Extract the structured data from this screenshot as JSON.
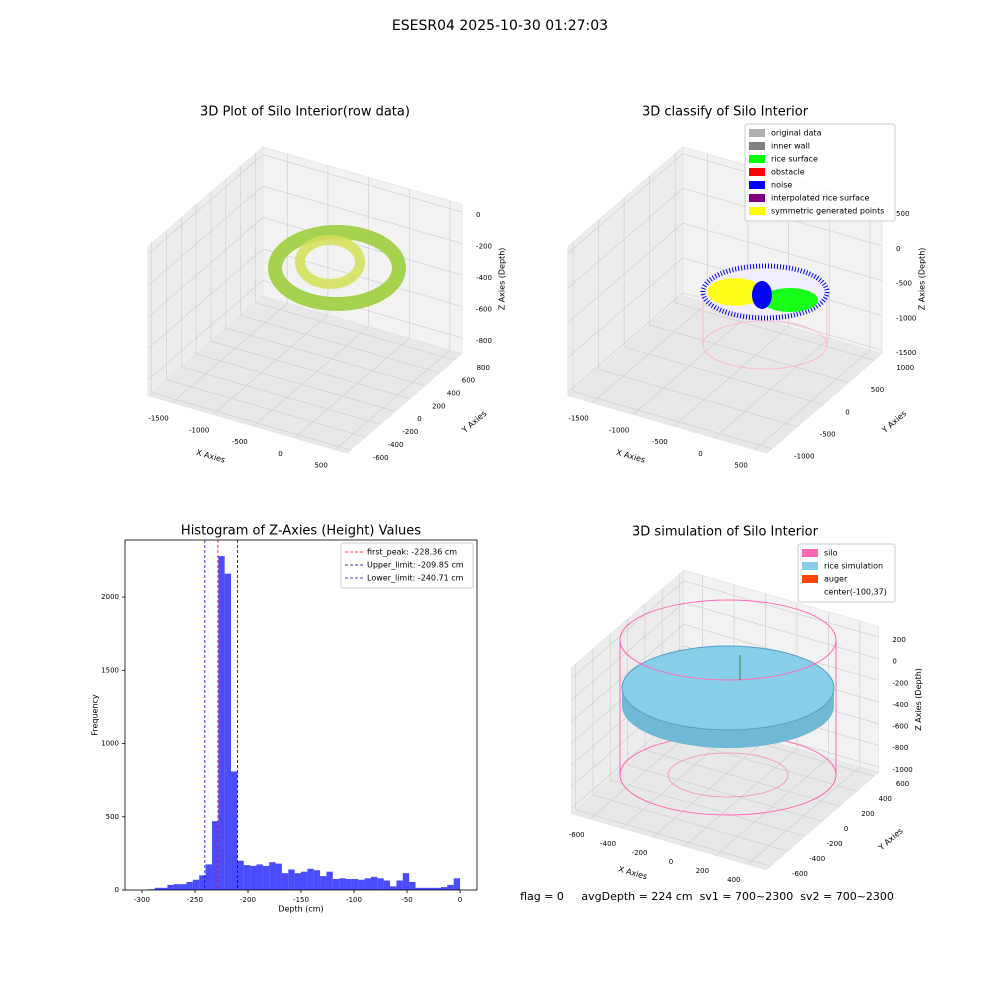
{
  "title": "ESESR04 2025-10-30 01:27:03",
  "footer": "flag = 0     avgDepth = 224 cm  sv1 = 700~2300  sv2 = 700~2300",
  "chart_data": [
    {
      "type": "scatter3d",
      "title": "3D Plot of Silo Interior(row data)",
      "xlabel": "X Axies",
      "ylabel": "Y Axies",
      "zlabel": "Z Axies (Depth)",
      "xlim": [
        -1800,
        650
      ],
      "xticks": [
        -1500,
        -1000,
        -500,
        0,
        500
      ],
      "ylim": [
        -650,
        900
      ],
      "yticks": [
        -600,
        -400,
        -200,
        0,
        200,
        400,
        600,
        800
      ],
      "zlim": [
        -900,
        50
      ],
      "zticks": [
        -800,
        -600,
        -400,
        -200,
        0
      ]
    },
    {
      "type": "scatter3d",
      "title": "3D classify of Silo Interior",
      "xlabel": "X Axies",
      "ylabel": "Y Axies",
      "zlabel": "Z Axies (Depth)",
      "xlim": [
        -1800,
        650
      ],
      "xticks": [
        -1500,
        -1000,
        -500,
        0,
        500
      ],
      "ylim": [
        -1100,
        1150
      ],
      "yticks": [
        -1000,
        -500,
        0,
        500,
        1000
      ],
      "zlim": [
        -1550,
        600
      ],
      "zticks": [
        -1500,
        -1000,
        -500,
        0,
        500
      ],
      "legend": "upper right",
      "series": [
        {
          "name": "original data",
          "color": "#b0b0b0"
        },
        {
          "name": "inner wall",
          "color": "#808080"
        },
        {
          "name": "rice surface",
          "color": "#00ff00"
        },
        {
          "name": "obstacle",
          "color": "#ff0000"
        },
        {
          "name": "noise",
          "color": "#0000ff"
        },
        {
          "name": "interpolated rice surface",
          "color": "#800080"
        },
        {
          "name": "symmetric generated points",
          "color": "#ffff00"
        }
      ]
    },
    {
      "type": "histogram",
      "title": "Histogram of Z-Axies (Height) Values",
      "xlabel": "Depth (cm)",
      "ylabel": "Frequency",
      "color": "#0000ff",
      "alpha": 0.7,
      "bins": [
        -300,
        -294,
        -288,
        -282,
        -276,
        -270,
        -264,
        -258,
        -252,
        -246,
        -240,
        -234,
        -228,
        -222,
        -216,
        -210,
        -204,
        -198,
        -192,
        -186,
        -180,
        -174,
        -168,
        -162,
        -156,
        -150,
        -144,
        -138,
        -132,
        -126,
        -120,
        -114,
        -108,
        -102,
        -96,
        -90,
        -84,
        -78,
        -72,
        -66,
        -60,
        -54,
        -48,
        -42,
        -36,
        -30,
        -24,
        -18,
        -12,
        -6,
        0
      ],
      "values": [
        0,
        5,
        15,
        15,
        35,
        40,
        40,
        55,
        70,
        100,
        175,
        470,
        2280,
        2160,
        810,
        200,
        170,
        165,
        175,
        165,
        190,
        180,
        115,
        140,
        115,
        125,
        145,
        135,
        95,
        125,
        75,
        80,
        75,
        75,
        70,
        80,
        90,
        80,
        65,
        25,
        65,
        115,
        55,
        15,
        15,
        15,
        15,
        20,
        35,
        80
      ],
      "xlim": [
        -316,
        16
      ],
      "xticks": [
        -300,
        -250,
        -200,
        -150,
        -100,
        -50,
        0
      ],
      "ylim": [
        0,
        2390
      ],
      "yticks": [
        0,
        500,
        1000,
        1500,
        2000
      ],
      "legend": "upper right",
      "vlines": [
        {
          "name": "first_peak: -228.36 cm",
          "value": -228.36,
          "color": "#ff0000"
        },
        {
          "name": "Upper_limit: -209.85 cm",
          "value": -209.85,
          "color": "#00008b"
        },
        {
          "name": "Lower_limit: -240.71 cm",
          "value": -240.71,
          "color": "#0000ff"
        }
      ]
    },
    {
      "type": "surface3d",
      "title": "3D simulation of Silo Interior",
      "xlabel": "X Axies",
      "ylabel": "Y Axies",
      "zlabel": "Z Axies (Depth)",
      "xlim": [
        -720,
        520
      ],
      "xticks": [
        -600,
        -400,
        -200,
        0,
        200,
        400
      ],
      "ylim": [
        -650,
        650
      ],
      "yticks": [
        -600,
        -400,
        -200,
        0,
        200,
        400,
        600
      ],
      "zlim": [
        -1050,
        300
      ],
      "zticks": [
        -1000,
        -800,
        -600,
        -400,
        -200,
        0,
        200
      ],
      "legend": "upper right",
      "series": [
        {
          "name": "silo",
          "color": "#ff69b4"
        },
        {
          "name": "rice simulation",
          "color": "#87ceeb"
        },
        {
          "name": "auger",
          "color": "#ff4500"
        },
        {
          "name": "center(-100,37)",
          "color": "#ffffff"
        }
      ]
    }
  ]
}
